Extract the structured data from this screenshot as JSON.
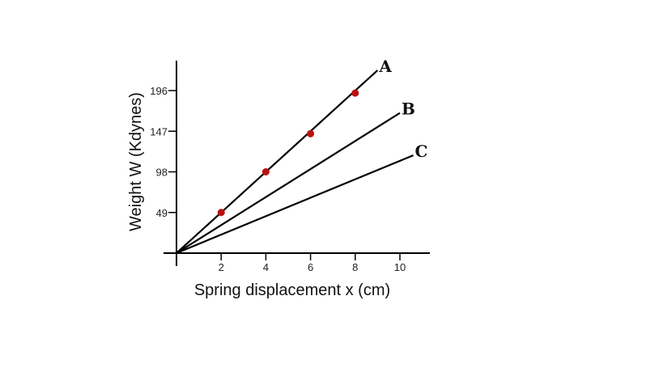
{
  "chart_data": {
    "type": "line",
    "title": "",
    "xlabel": "Spring displacement x (cm)",
    "ylabel": "Weight  W (Kdynes)",
    "xlim": [
      0,
      11
    ],
    "ylim": [
      0,
      215
    ],
    "x_ticks": [
      2,
      4,
      6,
      8,
      10
    ],
    "y_ticks": [
      49,
      98,
      147,
      196
    ],
    "grid": false,
    "colors": {
      "line": "#000000",
      "point": "#bb1111"
    },
    "series": [
      {
        "name": "A",
        "line": [
          [
            0,
            0
          ],
          [
            9,
            220.5
          ]
        ],
        "points": [
          [
            2,
            49
          ],
          [
            4,
            98
          ],
          [
            6,
            144
          ],
          [
            8,
            193
          ]
        ]
      },
      {
        "name": "B",
        "line": [
          [
            0,
            0
          ],
          [
            10,
            169
          ]
        ]
      },
      {
        "name": "C",
        "line": [
          [
            0,
            0
          ],
          [
            10.6,
            118
          ]
        ]
      }
    ]
  }
}
